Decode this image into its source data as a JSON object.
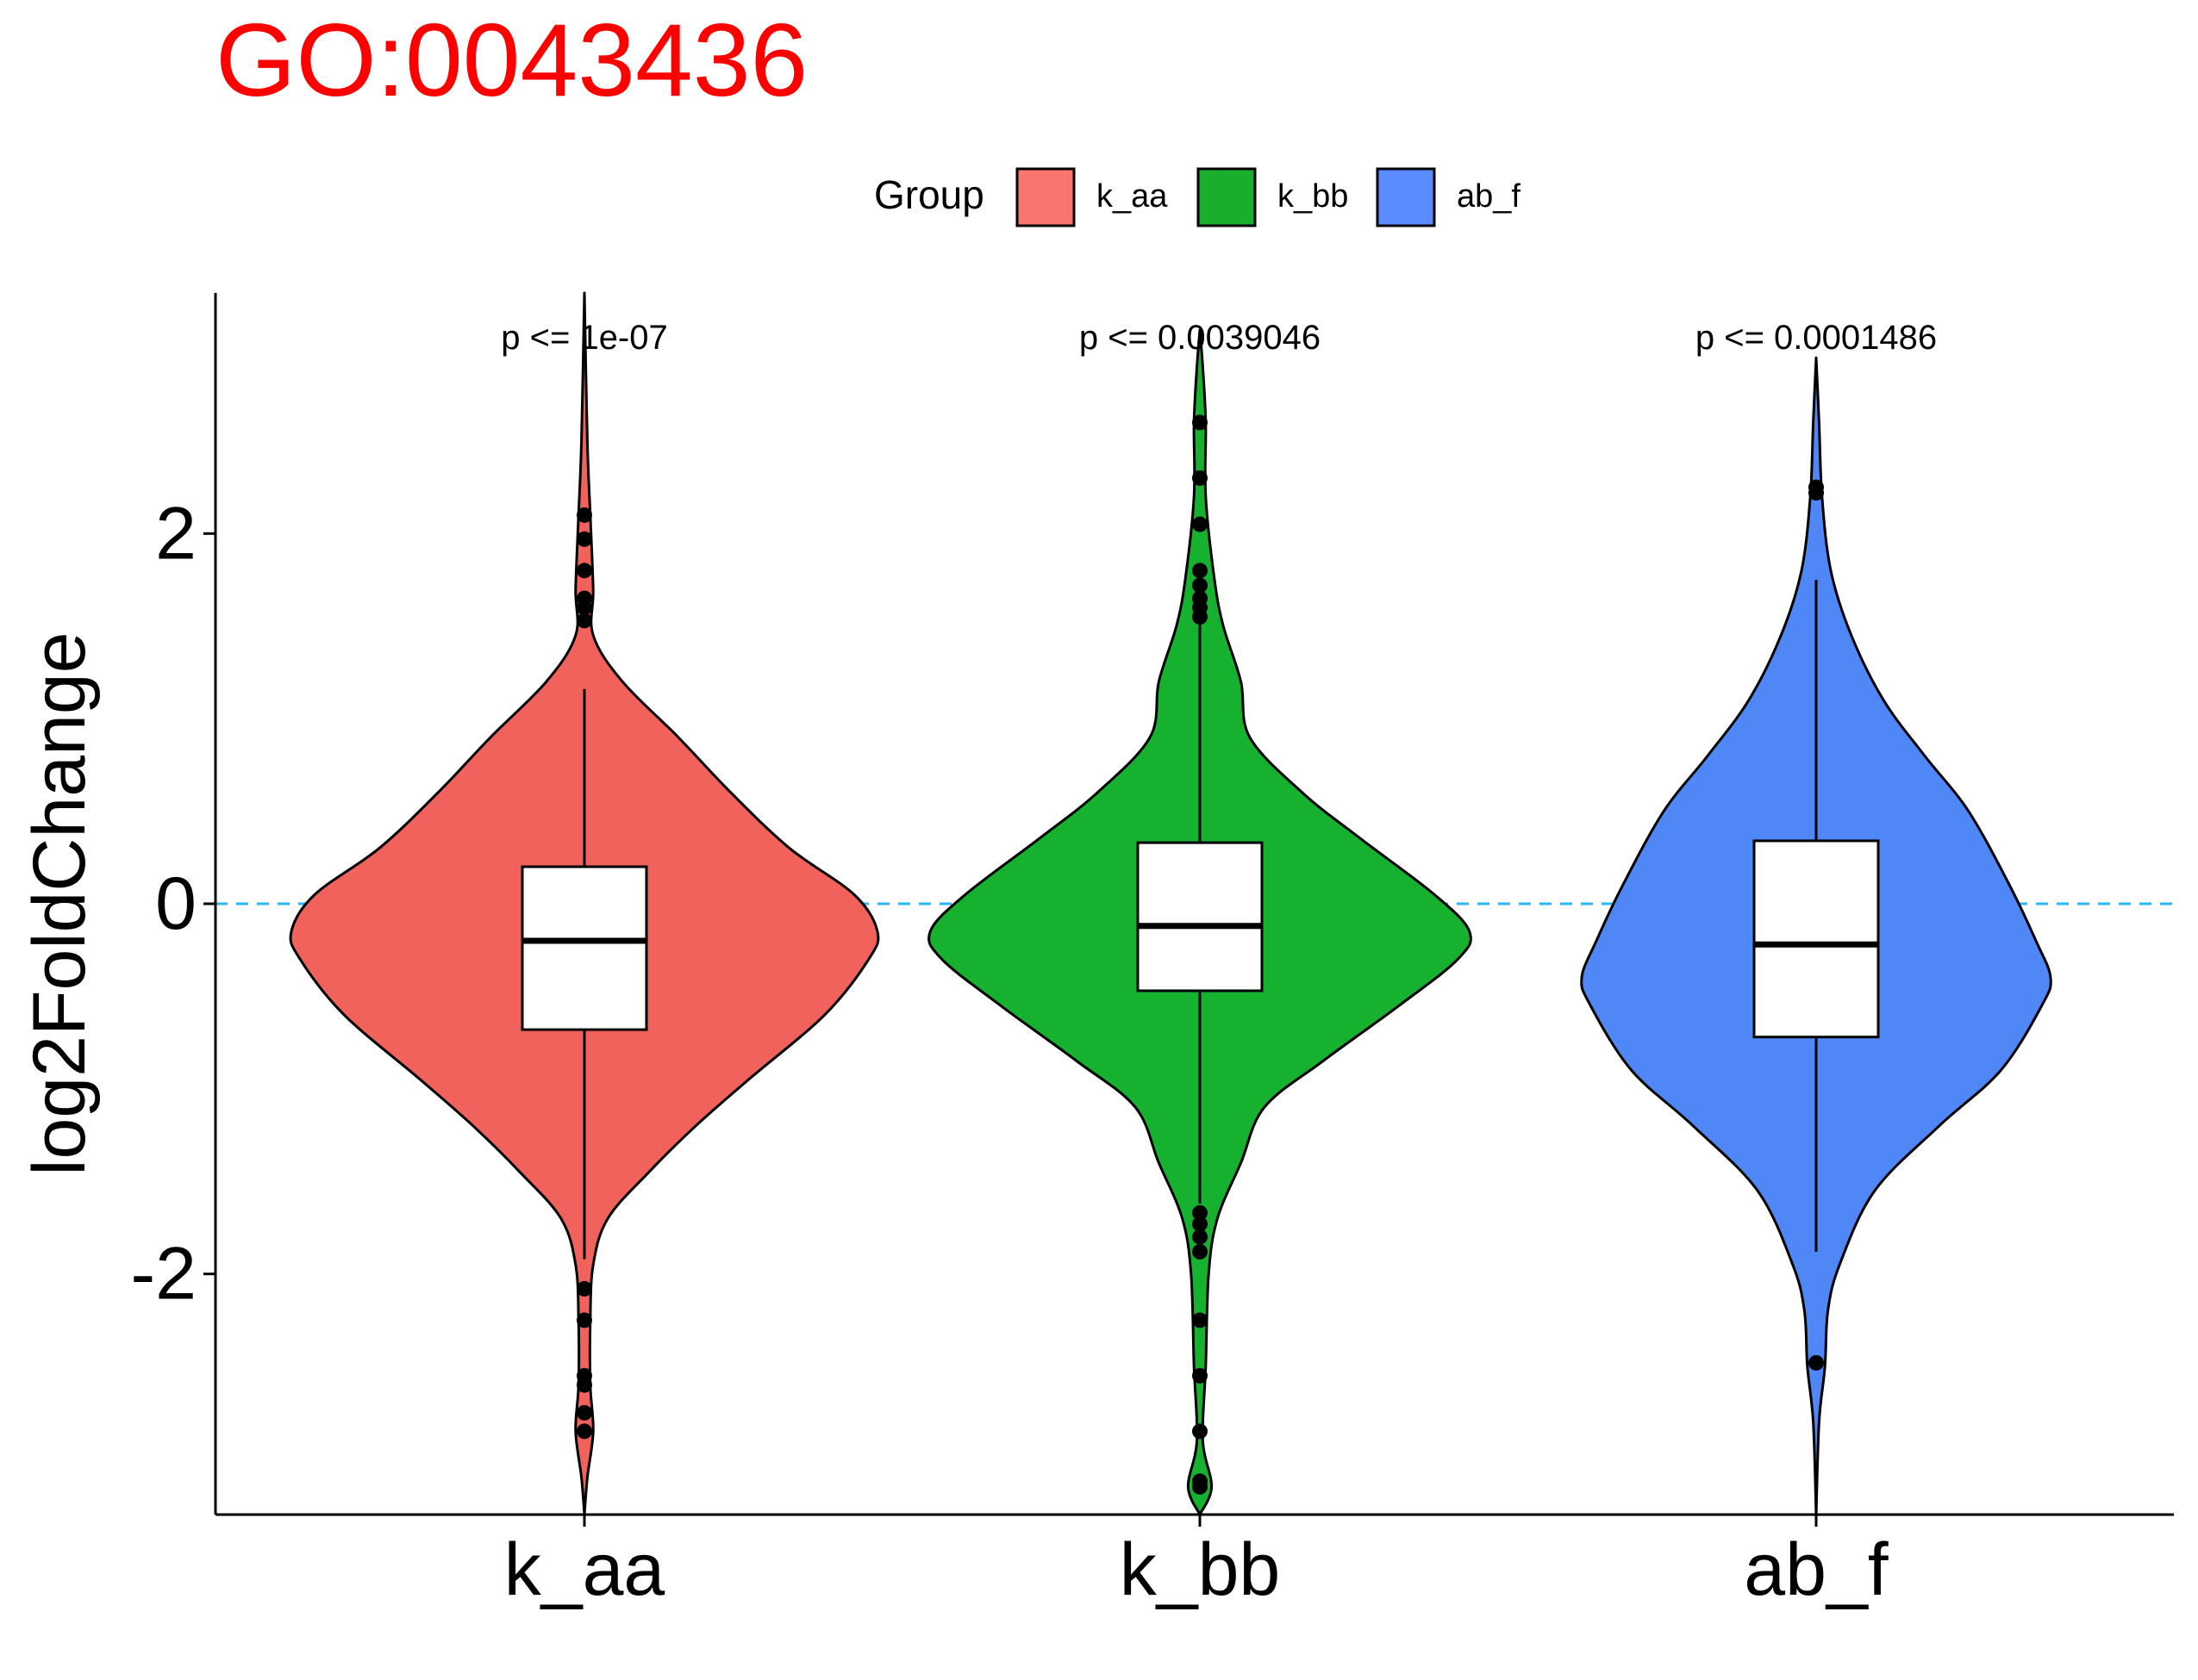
{
  "title": "GO:0043436",
  "legend": {
    "title": "Group",
    "position": "top",
    "items": [
      {
        "label": "k_aa",
        "color": "#F8766D"
      },
      {
        "label": "k_bb",
        "color": "#1AAE2D"
      },
      {
        "label": "ab_f",
        "color": "#5B8CFF"
      }
    ]
  },
  "chart_data": {
    "type": "violin",
    "title": "GO:0043436",
    "xlabel": "",
    "ylabel": "log2FoldChange",
    "ylim": [
      -3.3,
      3.3
    ],
    "y_ticks": [
      -2,
      0,
      2
    ],
    "y_tick_labels": [
      "-2",
      "0",
      "2"
    ],
    "reference_line": {
      "y": 0,
      "style": "dashed",
      "color": "#29B6F6"
    },
    "grid": false,
    "categories": [
      "k_aa",
      "k_bb",
      "ab_f"
    ],
    "series": [
      {
        "name": "k_aa",
        "color": "#F2625C",
        "pvalue_label": "p <= 1e-07",
        "box": {
          "q1": -0.68,
          "median": -0.2,
          "q3": 0.2,
          "whisker_low": -1.92,
          "whisker_high": 1.16
        },
        "outliers": [
          2.1,
          1.97,
          1.8,
          1.65,
          1.6,
          1.53,
          -2.08,
          -2.25,
          -2.55,
          -2.6,
          -2.75,
          -2.85
        ],
        "density": [
          [
            -3.3,
            0.0
          ],
          [
            -3.1,
            0.01
          ],
          [
            -2.85,
            0.03
          ],
          [
            -2.6,
            0.02
          ],
          [
            -2.25,
            0.02
          ],
          [
            -1.95,
            0.03
          ],
          [
            -1.7,
            0.08
          ],
          [
            -1.45,
            0.22
          ],
          [
            -1.2,
            0.38
          ],
          [
            -0.95,
            0.56
          ],
          [
            -0.6,
            0.82
          ],
          [
            -0.3,
            0.97
          ],
          [
            -0.15,
            1.0
          ],
          [
            0.05,
            0.92
          ],
          [
            0.3,
            0.7
          ],
          [
            0.6,
            0.5
          ],
          [
            0.9,
            0.32
          ],
          [
            1.2,
            0.13
          ],
          [
            1.45,
            0.03
          ],
          [
            1.7,
            0.03
          ],
          [
            2.1,
            0.02
          ],
          [
            2.5,
            0.01
          ],
          [
            3.3,
            0.0
          ]
        ]
      },
      {
        "name": "k_bb",
        "color": "#16B12E",
        "pvalue_label": "p <= 0.0039046",
        "box": {
          "q1": -0.47,
          "median": -0.12,
          "q3": 0.33,
          "whisker_low": -1.62,
          "whisker_high": 1.52
        },
        "outliers": [
          2.6,
          2.3,
          2.05,
          1.8,
          1.72,
          1.65,
          1.6,
          1.55,
          -1.67,
          -1.73,
          -1.8,
          -1.88,
          -2.25,
          -2.55,
          -2.85,
          -3.12,
          -3.15
        ],
        "density": [
          [
            -3.3,
            0.0
          ],
          [
            -3.15,
            0.04
          ],
          [
            -2.9,
            0.01
          ],
          [
            -2.5,
            0.02
          ],
          [
            -2.0,
            0.03
          ],
          [
            -1.7,
            0.06
          ],
          [
            -1.4,
            0.14
          ],
          [
            -1.1,
            0.22
          ],
          [
            -0.85,
            0.42
          ],
          [
            -0.55,
            0.68
          ],
          [
            -0.3,
            0.88
          ],
          [
            -0.15,
            0.92
          ],
          [
            0.05,
            0.8
          ],
          [
            0.35,
            0.55
          ],
          [
            0.6,
            0.35
          ],
          [
            0.9,
            0.17
          ],
          [
            1.2,
            0.14
          ],
          [
            1.5,
            0.08
          ],
          [
            1.75,
            0.05
          ],
          [
            2.2,
            0.02
          ],
          [
            2.6,
            0.02
          ],
          [
            2.9,
            0.01
          ],
          [
            3.1,
            0.0
          ]
        ]
      },
      {
        "name": "ab_f",
        "color": "#4F87F7",
        "pvalue_label": "p <= 0.0001486",
        "box": {
          "q1": -0.72,
          "median": -0.22,
          "q3": 0.34,
          "whisker_low": -1.88,
          "whisker_high": 1.75
        },
        "outliers": [
          2.25,
          2.22,
          -2.48
        ],
        "density": [
          [
            -3.3,
            0.0
          ],
          [
            -2.8,
            0.01
          ],
          [
            -2.5,
            0.03
          ],
          [
            -2.2,
            0.04
          ],
          [
            -1.95,
            0.08
          ],
          [
            -1.55,
            0.2
          ],
          [
            -1.2,
            0.42
          ],
          [
            -0.9,
            0.63
          ],
          [
            -0.55,
            0.77
          ],
          [
            -0.4,
            0.8
          ],
          [
            -0.2,
            0.75
          ],
          [
            0.1,
            0.66
          ],
          [
            0.5,
            0.52
          ],
          [
            0.8,
            0.37
          ],
          [
            1.1,
            0.23
          ],
          [
            1.45,
            0.12
          ],
          [
            1.8,
            0.05
          ],
          [
            2.2,
            0.02
          ],
          [
            2.6,
            0.01
          ],
          [
            2.95,
            0.0
          ]
        ]
      }
    ]
  }
}
